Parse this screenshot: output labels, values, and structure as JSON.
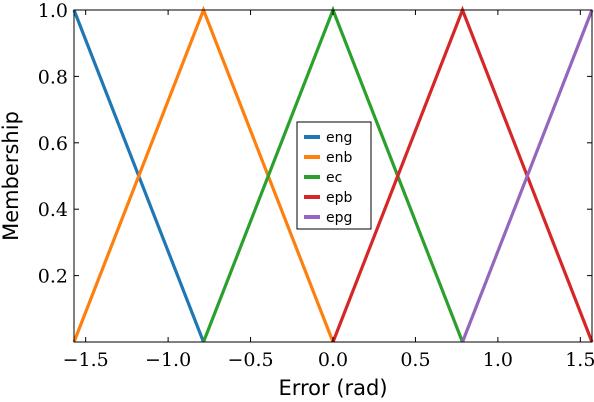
{
  "chart_data": {
    "type": "line",
    "xlabel": "Error (rad)",
    "ylabel": "Membership",
    "xlim": [
      -1.5708,
      1.5708
    ],
    "ylim": [
      0,
      1.0
    ],
    "xticks": [
      -1.5,
      -1.0,
      -0.5,
      0.0,
      0.5,
      1.0,
      1.5
    ],
    "xtick_labels": [
      "−1.5",
      "−1.0",
      "−0.5",
      "0.0",
      "0.5",
      "1.0",
      "1.5"
    ],
    "yticks": [
      0.2,
      0.4,
      0.6,
      0.8,
      1.0
    ],
    "ytick_labels": [
      "0.2",
      "0.4",
      "0.6",
      "0.8",
      "1.0"
    ],
    "grid": false,
    "legend_position": "center",
    "series": [
      {
        "name": "eng",
        "color": "#1f77b4",
        "x": [
          -1.5708,
          -0.7854
        ],
        "y": [
          1.0,
          0.0
        ]
      },
      {
        "name": "enb",
        "color": "#ff7f0e",
        "x": [
          -1.5708,
          -0.7854,
          0.0
        ],
        "y": [
          0.0,
          1.0,
          0.0
        ]
      },
      {
        "name": "ec",
        "color": "#2ca02c",
        "x": [
          -0.7854,
          0.0,
          0.7854
        ],
        "y": [
          0.0,
          1.0,
          0.0
        ]
      },
      {
        "name": "epb",
        "color": "#d62728",
        "x": [
          0.0,
          0.7854,
          1.5708
        ],
        "y": [
          0.0,
          1.0,
          0.0
        ]
      },
      {
        "name": "epg",
        "color": "#9467bd",
        "x": [
          0.7854,
          1.5708
        ],
        "y": [
          0.0,
          1.0
        ]
      }
    ]
  }
}
